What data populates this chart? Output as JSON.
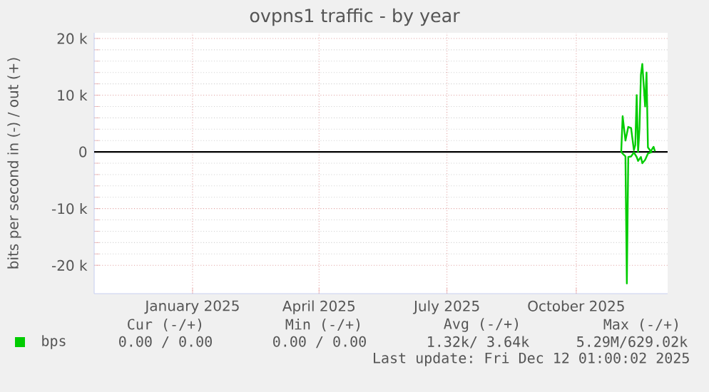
{
  "chart_data": {
    "type": "line",
    "title": "ovpns1 traffic - by year",
    "ylabel": "bits per second in (-) / out (+)",
    "xlim": [
      "2024-10-23",
      "2025-12-05"
    ],
    "ylim": [
      -25000,
      21000
    ],
    "xticks": [
      {
        "value": "2025-01-01",
        "label": "January 2025"
      },
      {
        "value": "2025-04-01",
        "label": "April 2025"
      },
      {
        "value": "2025-07-01",
        "label": "July 2025"
      },
      {
        "value": "2025-10-01",
        "label": "October 2025"
      }
    ],
    "yticks": [
      {
        "value": -20000,
        "label": "-20 k"
      },
      {
        "value": -10000,
        "label": "-10 k"
      },
      0,
      {
        "value": 10000,
        "label": "10 k"
      },
      {
        "value": 20000,
        "label": "20 k"
      }
    ],
    "grid": true,
    "legend": "bottom left",
    "ref_lines": [
      {
        "axis": "y",
        "value": 0,
        "color": "#000000"
      }
    ],
    "series": [
      {
        "name": "bps",
        "color": "#00cc00",
        "x": [
          "2025-11-02",
          "2025-11-03",
          "2025-11-05",
          "2025-11-07",
          "2025-11-09",
          "2025-11-11",
          "2025-11-12",
          "2025-11-13",
          "2025-11-14",
          "2025-11-15",
          "2025-11-16",
          "2025-11-17",
          "2025-11-19",
          "2025-11-20",
          "2025-11-21",
          "2025-11-23",
          "2025-11-25",
          "2025-11-26"
        ],
        "values": [
          0,
          6300,
          2000,
          4400,
          4200,
          300,
          1200,
          10000,
          0,
          4200,
          13600,
          15500,
          8000,
          14000,
          800,
          100,
          900,
          100
        ]
      },
      {
        "color": "#00cc00",
        "x": [
          "2025-11-02",
          "2025-11-03",
          "2025-11-05",
          "2025-11-06",
          "2025-11-07",
          "2025-11-09",
          "2025-11-11",
          "2025-11-13",
          "2025-11-14",
          "2025-11-16",
          "2025-11-17",
          "2025-11-19",
          "2025-11-21",
          "2025-11-24"
        ],
        "values": [
          0,
          -300,
          -800,
          -23200,
          -900,
          -800,
          -100,
          -900,
          -1600,
          -900,
          -2000,
          -1400,
          -300,
          0
        ]
      }
    ],
    "annotations": [
      "Cur (-/+)",
      "Min (-/+)",
      "Avg (-/+)",
      "Max (-/+)",
      "0.00 /  0.00",
      "0.00 /  0.00",
      "1.32k/  3.64k",
      "5.29M/629.02k",
      "Last update: Fri Dec 12 01:00:02 2025"
    ]
  }
}
